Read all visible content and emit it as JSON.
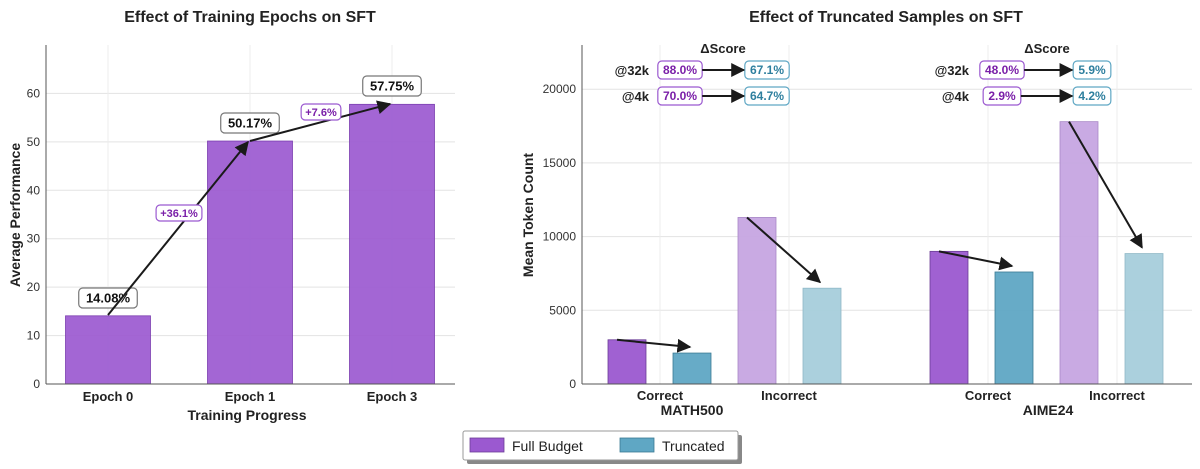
{
  "chart_data": [
    {
      "type": "bar",
      "title": "Effect of Training Epochs on SFT",
      "xlabel": "Training Progress",
      "ylabel": "Average Performance",
      "ylim": [
        0,
        70
      ],
      "yticks": [
        0,
        10,
        20,
        30,
        40,
        50,
        60
      ],
      "categories": [
        "Epoch 0",
        "Epoch 1",
        "Epoch 3"
      ],
      "values": [
        14.08,
        50.17,
        57.75
      ],
      "value_labels": [
        "14.08%",
        "50.17%",
        "57.75%"
      ],
      "improvements": [
        "+36.1%",
        "+7.6%"
      ],
      "bar_color": "#9b59d0",
      "grid": true
    },
    {
      "type": "bar",
      "title": "Effect of Truncated Samples on SFT",
      "xlabel": "",
      "ylabel": "Mean Token Count",
      "ylim": [
        0,
        23000
      ],
      "yticks": [
        0,
        5000,
        10000,
        15000,
        20000
      ],
      "groups": [
        {
          "name": "MATH500",
          "categories": [
            "Correct",
            "Incorrect"
          ],
          "full_budget": [
            3000,
            11300
          ],
          "truncated": [
            2100,
            6500
          ],
          "delta_score": {
            "header": "ΔScore",
            "rows": [
              {
                "label": "@32k",
                "full": "88.0%",
                "truncated": "67.1%"
              },
              {
                "label": "@4k",
                "full": "70.0%",
                "truncated": "64.7%"
              }
            ]
          }
        },
        {
          "name": "AIME24",
          "categories": [
            "Correct",
            "Incorrect"
          ],
          "full_budget": [
            9000,
            17800
          ],
          "truncated": [
            7600,
            8850
          ],
          "delta_score": {
            "header": "ΔScore",
            "rows": [
              {
                "label": "@32k",
                "full": "48.0%",
                "truncated": "5.9%"
              },
              {
                "label": "@4k",
                "full": "2.9%",
                "truncated": "4.2%"
              }
            ]
          }
        }
      ],
      "series": [
        {
          "name": "Full Budget",
          "color": "#9b59d0",
          "light_color": "#c6a5e2"
        },
        {
          "name": "Truncated",
          "color": "#5fa7c4",
          "light_color": "#a6cedb"
        }
      ],
      "legend": "bottom-center",
      "grid": true
    }
  ]
}
